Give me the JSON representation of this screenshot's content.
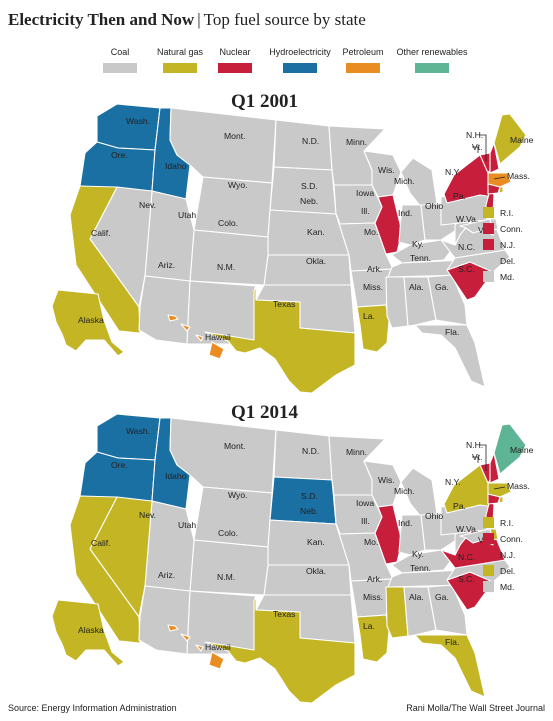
{
  "header": {
    "title_main": "Electricity Then and Now",
    "separator": "|",
    "title_sub": "Top fuel source by state"
  },
  "legend": [
    {
      "label": "Coal",
      "color": "#c9c9c9"
    },
    {
      "label": "Natural gas",
      "color": "#c4b525"
    },
    {
      "label": "Nuclear",
      "color": "#c71f3b"
    },
    {
      "label": "Hydroelectricity",
      "color": "#1a6fa3"
    },
    {
      "label": "Petroleum",
      "color": "#e98d22"
    },
    {
      "label": "Other renewables",
      "color": "#5db595"
    }
  ],
  "maps": [
    {
      "title": "Q1 2001",
      "states": {
        "wa": "hydro",
        "or": "hydro",
        "id": "hydro",
        "mt": "coal",
        "wy": "coal",
        "nd": "coal",
        "sd": "coal",
        "ne": "coal",
        "ks": "coal",
        "co": "coal",
        "ut": "coal",
        "nv": "coal",
        "ca": "gas",
        "az": "coal",
        "nm": "coal",
        "ok": "coal",
        "tx": "gas",
        "ak": "gas",
        "hi": "petroleum",
        "mn": "coal",
        "ia": "coal",
        "mo": "coal",
        "ar": "coal",
        "la": "gas",
        "wi": "coal",
        "il": "nuclear",
        "mi": "coal",
        "in": "coal",
        "oh": "coal",
        "ky": "coal",
        "tn": "coal",
        "ms": "coal",
        "al": "coal",
        "ga": "coal",
        "fl": "coal",
        "sc": "nuclear",
        "nc": "coal",
        "va": "coal",
        "wv": "coal",
        "pa": "coal",
        "ny": "nuclear",
        "nj": "nuclear",
        "vt": "nuclear",
        "nh": "nuclear",
        "me": "gas",
        "ma": "petroleum",
        "ct": "nuclear",
        "ri": "gas",
        "de": "coal",
        "md": "coal"
      },
      "labels": {
        "wa": "Wash.",
        "or": "Ore.",
        "id": "Idaho",
        "mt": "Mont.",
        "wy": "Wyo.",
        "nd": "N.D.",
        "sd": "S.D.",
        "ne": "Neb.",
        "ks": "Kan.",
        "co": "Colo.",
        "ut": "Utah",
        "nv": "Nev.",
        "ca": "Calif.",
        "az": "Ariz.",
        "nm": "N.M.",
        "ok": "Okla.",
        "tx": "Texas",
        "ak": "Alaska",
        "hi": "Hawaii",
        "mn": "Minn.",
        "ia": "Iowa",
        "mo": "Mo.",
        "ar": "Ark.",
        "la": "La.",
        "wi": "Wis.",
        "il": "Ill.",
        "mi": "Mich.",
        "in": "Ind.",
        "oh": "Ohio",
        "ky": "Ky.",
        "tn": "Tenn.",
        "ms": "Miss.",
        "al": "Ala.",
        "ga": "Ga.",
        "fl": "Fla.",
        "sc": "S.C.",
        "nc": "N.C.",
        "va": "Va.",
        "wv": "W.Va.",
        "pa": "Pa.",
        "ny": "N.Y.",
        "nh": "N.H.",
        "vt": "Vt.",
        "me": "Maine",
        "ma": "Mass."
      },
      "small_states": [
        {
          "label": "R.I.",
          "fuel": "gas"
        },
        {
          "label": "Conn.",
          "fuel": "nuclear"
        },
        {
          "label": "N.J.",
          "fuel": "nuclear"
        },
        {
          "label": "Del.",
          "fuel": "coal"
        },
        {
          "label": "Md.",
          "fuel": "coal"
        }
      ]
    },
    {
      "title": "Q1 2014",
      "states": {
        "wa": "hydro",
        "or": "hydro",
        "id": "hydro",
        "mt": "coal",
        "wy": "coal",
        "nd": "coal",
        "sd": "hydro",
        "ne": "coal",
        "ks": "coal",
        "co": "coal",
        "ut": "coal",
        "nv": "gas",
        "ca": "gas",
        "az": "coal",
        "nm": "coal",
        "ok": "coal",
        "tx": "gas",
        "ak": "gas",
        "hi": "petroleum",
        "mn": "coal",
        "ia": "coal",
        "mo": "coal",
        "ar": "coal",
        "la": "gas",
        "wi": "coal",
        "il": "nuclear",
        "mi": "coal",
        "in": "coal",
        "oh": "coal",
        "ky": "coal",
        "tn": "coal",
        "ms": "gas",
        "al": "coal",
        "ga": "coal",
        "fl": "gas",
        "sc": "nuclear",
        "nc": "coal",
        "va": "nuclear",
        "wv": "coal",
        "pa": "coal",
        "ny": "gas",
        "nj": "nuclear",
        "vt": "nuclear",
        "nh": "nuclear",
        "me": "renewables",
        "ma": "gas",
        "ct": "nuclear",
        "ri": "gas",
        "de": "gas",
        "md": "coal"
      },
      "labels": {
        "wa": "Wash.",
        "or": "Ore.",
        "id": "Idaho",
        "mt": "Mont.",
        "wy": "Wyo.",
        "nd": "N.D.",
        "sd": "S.D.",
        "ne": "Neb.",
        "ks": "Kan.",
        "co": "Colo.",
        "ut": "Utah",
        "nv": "Nev.",
        "ca": "Calif.",
        "az": "Ariz.",
        "nm": "N.M.",
        "ok": "Okla.",
        "tx": "Texas",
        "ak": "Alaska",
        "hi": "Hawaii",
        "mn": "Minn.",
        "ia": "Iowa",
        "mo": "Mo.",
        "ar": "Ark.",
        "la": "La.",
        "wi": "Wis.",
        "il": "Ill.",
        "mi": "Mich.",
        "in": "Ind.",
        "oh": "Ohio",
        "ky": "Ky.",
        "tn": "Tenn.",
        "ms": "Miss.",
        "al": "Ala.",
        "ga": "Ga.",
        "fl": "Fla.",
        "sc": "S.C.",
        "nc": "N.C.",
        "va": "Va.",
        "wv": "W.Va.",
        "pa": "Pa.",
        "ny": "N.Y.",
        "nh": "N.H.",
        "vt": "Vt.",
        "me": "Maine",
        "ma": "Mass."
      },
      "small_states": [
        {
          "label": "R.I.",
          "fuel": "gas"
        },
        {
          "label": "Conn.",
          "fuel": "nuclear"
        },
        {
          "label": "N.J.",
          "fuel": "nuclear"
        },
        {
          "label": "Del.",
          "fuel": "gas"
        },
        {
          "label": "Md.",
          "fuel": "coal"
        }
      ]
    }
  ],
  "fuel_colors": {
    "coal": "#c9c9c9",
    "gas": "#c4b525",
    "nuclear": "#c71f3b",
    "hydro": "#1a6fa3",
    "petroleum": "#e98d22",
    "renewables": "#5db595"
  },
  "footer": {
    "source": "Source: Energy Information Administration",
    "credit": "Rani Molla/The Wall Street Journal"
  }
}
